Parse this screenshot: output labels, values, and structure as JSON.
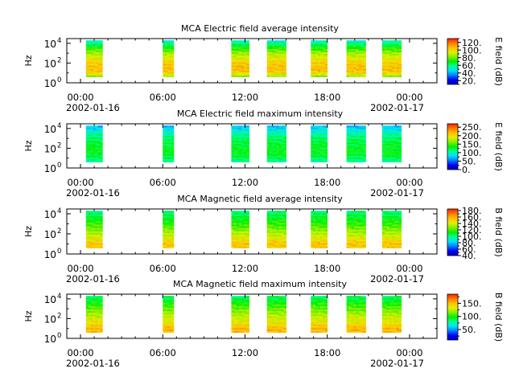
{
  "colors": {
    "colormap": [
      "#0000b4",
      "#0000ff",
      "#0080ff",
      "#00e0ff",
      "#00ff90",
      "#00f000",
      "#80f000",
      "#e0f000",
      "#ffc000",
      "#ff7800",
      "#ff2000"
    ]
  },
  "chart_data": [
    {
      "type": "heatmap",
      "title": "MCA  Electric field average intensity",
      "ylabel": "Hz",
      "y_scale": "log",
      "ylim": [
        1,
        30000
      ],
      "y_ticks": [
        "10^0",
        "10^2",
        "10^4"
      ],
      "xlim_hours": [
        -1,
        26
      ],
      "x_ticks": [
        "00:00\n2002-01-16",
        "06:00",
        "12:00",
        "18:00",
        "00:00\n2002-01-17"
      ],
      "colorbar": {
        "label": "E field (dB)",
        "range": [
          10,
          130
        ],
        "ticks": [
          "20.",
          "40.",
          "60.",
          "80.",
          "100.",
          "120."
        ]
      },
      "segments_hours": [
        [
          0.4,
          1.6
        ],
        [
          6.0,
          6.8
        ],
        [
          11.0,
          12.3
        ],
        [
          13.6,
          15.0
        ],
        [
          16.8,
          18.0
        ],
        [
          19.4,
          20.8
        ],
        [
          22.0,
          23.4
        ]
      ],
      "freq_profile_db": [
        50,
        62,
        72,
        82,
        90,
        96,
        102,
        104,
        106,
        100,
        80
      ],
      "xtick_labels": {
        "t0": "00:00",
        "t6": "06:00",
        "t12": "12:00",
        "t18": "18:00",
        "t24": "00:00",
        "d0": "2002-01-16",
        "d24": "2002-01-17"
      },
      "ytick_labels": {
        "base": "10",
        "e0": "0",
        "e2": "2",
        "e4": "4"
      },
      "cbar_label": "E field (dB)"
    },
    {
      "type": "heatmap",
      "title": "MCA  Electric field maximum intensity",
      "ylabel": "Hz",
      "y_scale": "log",
      "ylim": [
        1,
        30000
      ],
      "y_ticks": [
        "10^0",
        "10^2",
        "10^4"
      ],
      "xlim_hours": [
        -1,
        26
      ],
      "x_ticks": [
        "00:00\n2002-01-16",
        "06:00",
        "12:00",
        "18:00",
        "00:00\n2002-01-17"
      ],
      "colorbar": {
        "label": "E field (dB)",
        "range": [
          0,
          270
        ],
        "ticks": [
          "0.",
          "50.",
          "100.",
          "150.",
          "200.",
          "250."
        ]
      },
      "segments_hours": [
        [
          0.4,
          1.6
        ],
        [
          6.0,
          6.8
        ],
        [
          11.0,
          12.3
        ],
        [
          13.6,
          15.0
        ],
        [
          16.8,
          18.0
        ],
        [
          19.4,
          20.8
        ],
        [
          22.0,
          23.4
        ]
      ],
      "freq_profile_db": [
        70,
        85,
        100,
        112,
        120,
        126,
        130,
        132,
        128,
        118,
        100
      ],
      "xtick_labels": {
        "t0": "00:00",
        "t6": "06:00",
        "t12": "12:00",
        "t18": "18:00",
        "t24": "00:00",
        "d0": "2002-01-16",
        "d24": "2002-01-17"
      },
      "ytick_labels": {
        "base": "10",
        "e0": "0",
        "e2": "2",
        "e4": "4"
      },
      "cbar_label": "E field (dB)"
    },
    {
      "type": "heatmap",
      "title": "MCA  Magnetic field average intensity",
      "ylabel": "Hz",
      "y_scale": "log",
      "ylim": [
        1,
        30000
      ],
      "y_ticks": [
        "10^0",
        "10^2",
        "10^4"
      ],
      "xlim_hours": [
        -1,
        26
      ],
      "x_ticks": [
        "00:00\n2002-01-16",
        "06:00",
        "12:00",
        "18:00",
        "00:00\n2002-01-17"
      ],
      "colorbar": {
        "label": "B field (dB)",
        "range": [
          40,
          185
        ],
        "ticks": [
          "40.",
          "60.",
          "80.",
          "100.",
          "120.",
          "140.",
          "160.",
          "180."
        ]
      },
      "segments_hours": [
        [
          0.4,
          1.6
        ],
        [
          6.0,
          6.8
        ],
        [
          11.0,
          12.3
        ],
        [
          13.6,
          15.0
        ],
        [
          16.8,
          18.0
        ],
        [
          19.4,
          20.8
        ],
        [
          22.0,
          23.4
        ]
      ],
      "freq_profile_db": [
        100,
        105,
        110,
        115,
        120,
        128,
        135,
        140,
        148,
        155,
        150
      ],
      "xtick_labels": {
        "t0": "00:00",
        "t6": "06:00",
        "t12": "12:00",
        "t18": "18:00",
        "t24": "00:00",
        "d0": "2002-01-16",
        "d24": "2002-01-17"
      },
      "ytick_labels": {
        "base": "10",
        "e0": "0",
        "e2": "2",
        "e4": "4"
      },
      "cbar_label": "B field (dB)"
    },
    {
      "type": "heatmap",
      "title": "MCA  Magnetic field maximum intensity",
      "ylabel": "Hz",
      "y_scale": "log",
      "ylim": [
        1,
        30000
      ],
      "y_ticks": [
        "10^0",
        "10^2",
        "10^4"
      ],
      "xlim_hours": [
        -1,
        26
      ],
      "x_ticks": [
        "00:00\n2002-01-16",
        "06:00",
        "12:00",
        "18:00",
        "00:00\n2002-01-17"
      ],
      "colorbar": {
        "label": "B field (dB)",
        "range": [
          10,
          185
        ],
        "ticks": [
          "50.",
          "100.",
          "150."
        ]
      },
      "segments_hours": [
        [
          0.4,
          1.6
        ],
        [
          6.0,
          6.8
        ],
        [
          11.0,
          12.3
        ],
        [
          13.6,
          15.0
        ],
        [
          16.8,
          18.0
        ],
        [
          19.4,
          20.8
        ],
        [
          22.0,
          23.4
        ]
      ],
      "freq_profile_db": [
        85,
        92,
        100,
        108,
        115,
        122,
        130,
        136,
        145,
        152,
        148
      ],
      "xtick_labels": {
        "t0": "00:00",
        "t6": "06:00",
        "t12": "12:00",
        "t18": "18:00",
        "t24": "00:00",
        "d0": "2002-01-16",
        "d24": "2002-01-17"
      },
      "ytick_labels": {
        "base": "10",
        "e0": "0",
        "e2": "2",
        "e4": "4"
      },
      "cbar_label": "B field (dB)"
    }
  ]
}
